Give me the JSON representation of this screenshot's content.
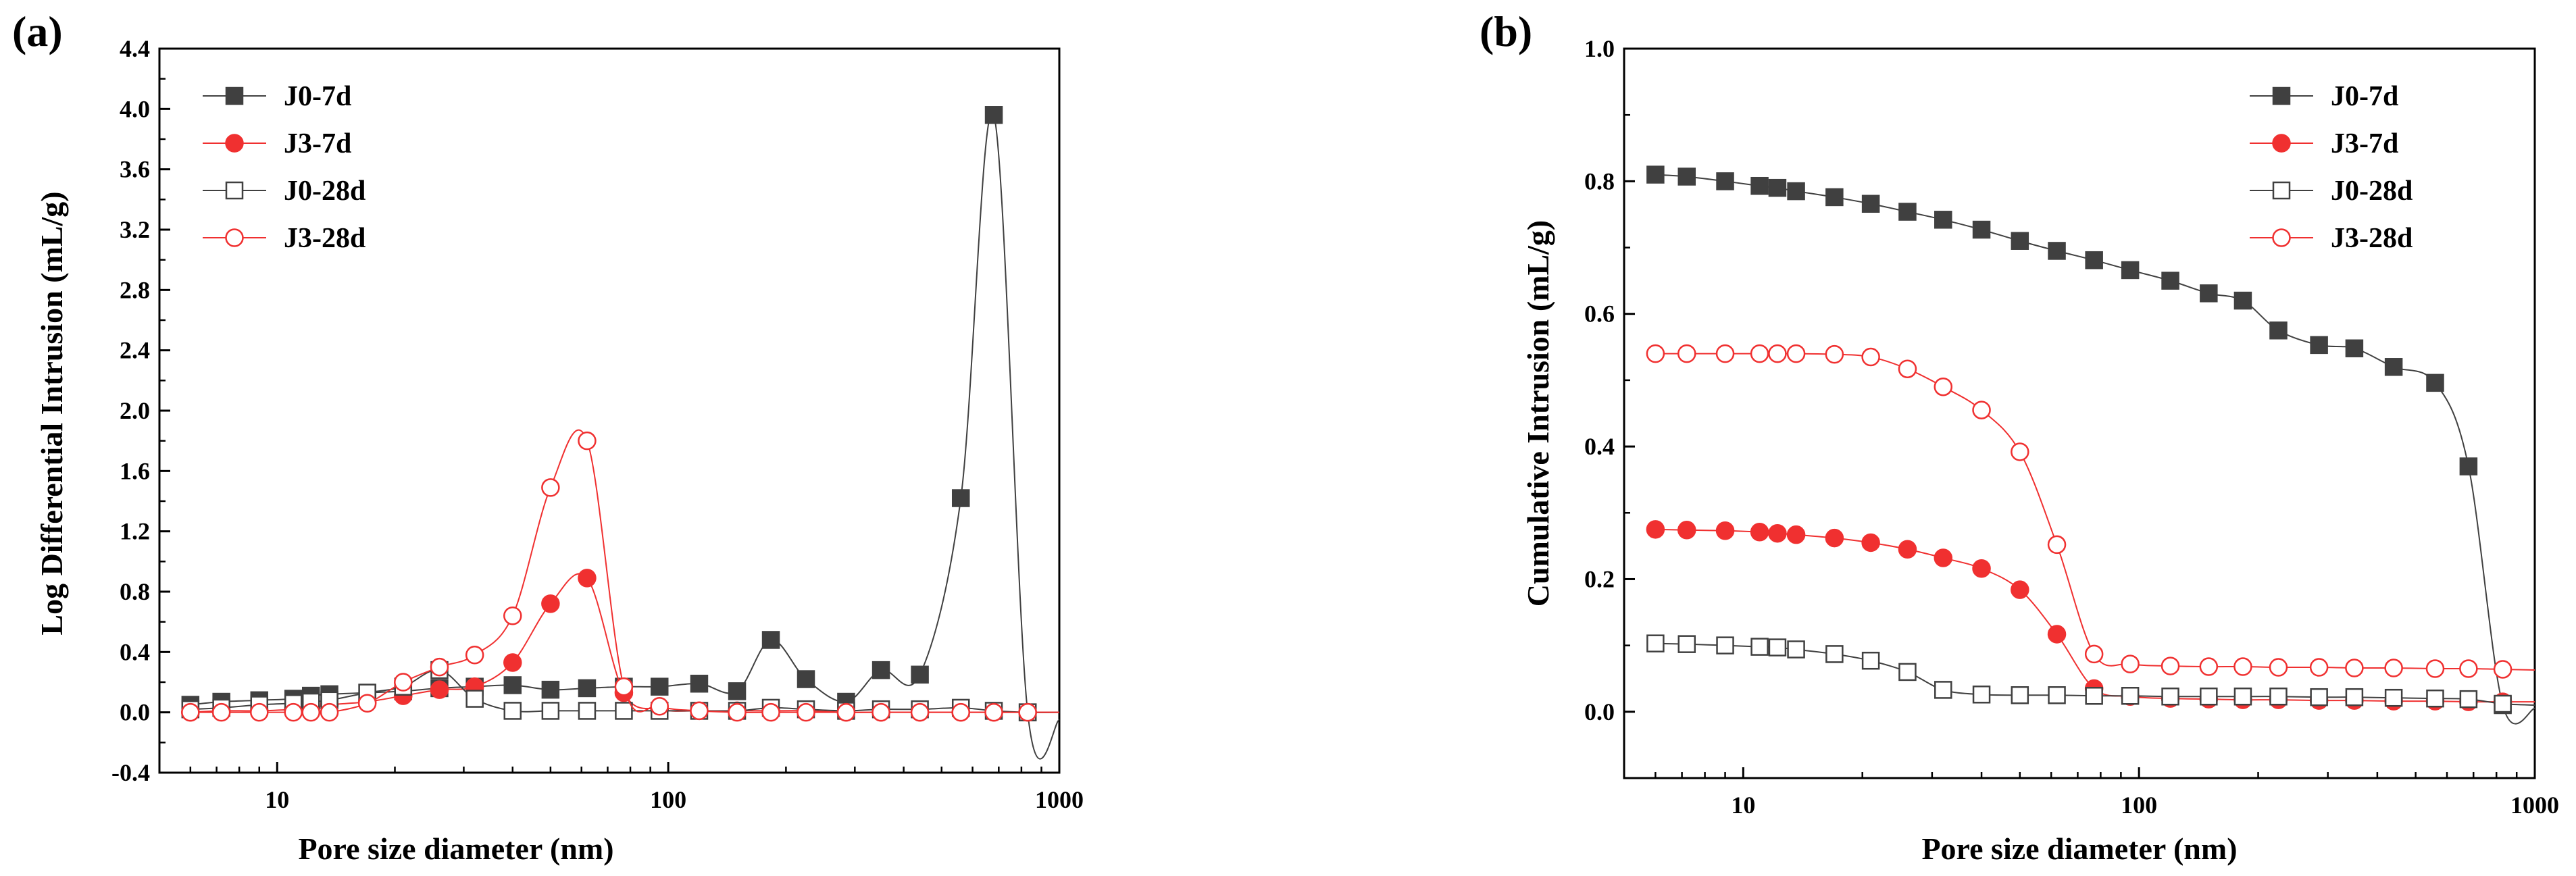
{
  "chart_data": [
    {
      "id": "a",
      "type": "line",
      "panel_label": "(a)",
      "xlabel": "Pore size diameter (nm)",
      "ylabel": "Log Differential Intrusion (mL/g)",
      "xscale": "log",
      "xlim": [
        5,
        1000
      ],
      "ylim": [
        -0.4,
        4.4
      ],
      "xticks": [
        10,
        100,
        1000
      ],
      "xtick_labels": [
        "10",
        "100",
        "1000"
      ],
      "yticks": [
        -0.4,
        0.0,
        0.4,
        0.8,
        1.2,
        1.6,
        2.0,
        2.4,
        2.8,
        3.2,
        3.6,
        4.0,
        4.4
      ],
      "ytick_labels": [
        "-0.4",
        "0.0",
        "0.4",
        "0.8",
        "1.2",
        "1.6",
        "2.0",
        "2.4",
        "2.8",
        "3.2",
        "3.6",
        "4.0",
        "4.4"
      ],
      "legend_position": "top-left",
      "series": [
        {
          "name": "J0-7d",
          "color": "#404040",
          "marker": "square",
          "filled": true,
          "x": [
            6,
            7.2,
            9,
            11,
            12.2,
            13.6,
            17,
            21,
            26,
            32,
            40,
            50,
            62,
            77,
            95,
            120,
            150,
            183,
            225,
            285,
            350,
            440,
            560,
            680,
            830,
            1000
          ],
          "y": [
            0.05,
            0.07,
            0.08,
            0.09,
            0.11,
            0.12,
            0.13,
            0.14,
            0.16,
            0.17,
            0.18,
            0.15,
            0.16,
            0.17,
            0.17,
            0.19,
            0.14,
            0.48,
            0.22,
            0.07,
            0.28,
            0.25,
            1.42,
            3.96,
            0.0,
            -0.05
          ]
        },
        {
          "name": "J3-7d",
          "color": "#f03030",
          "marker": "circle",
          "filled": true,
          "x": [
            6,
            7.2,
            9,
            11,
            12.2,
            13.6,
            17,
            21,
            26,
            32,
            40,
            50,
            62,
            77,
            95,
            120,
            150,
            183,
            225,
            285,
            350,
            440,
            560,
            680,
            830,
            1000
          ],
          "y": [
            0.0,
            0.01,
            0.01,
            0.02,
            0.03,
            0.05,
            0.07,
            0.11,
            0.15,
            0.17,
            0.33,
            0.72,
            0.89,
            0.13,
            0.02,
            0.01,
            0.01,
            0.01,
            0.01,
            0.0,
            0.0,
            0.0,
            0.0,
            0.0,
            0.0,
            0.0
          ]
        },
        {
          "name": "J0-28d",
          "color": "#404040",
          "marker": "square",
          "filled": false,
          "x": [
            6,
            7.2,
            9,
            11,
            12.2,
            13.6,
            17,
            21,
            26,
            32,
            40,
            50,
            62,
            77,
            95,
            120,
            150,
            183,
            225,
            285,
            350,
            440,
            560,
            680,
            830,
            1000
          ],
          "y": [
            0.02,
            0.03,
            0.05,
            0.06,
            0.07,
            0.08,
            0.13,
            0.17,
            0.28,
            0.09,
            0.01,
            0.01,
            0.01,
            0.01,
            0.01,
            0.01,
            0.01,
            0.03,
            0.02,
            0.01,
            0.02,
            0.02,
            0.03,
            0.01,
            0.0,
            0.0
          ]
        },
        {
          "name": "J3-28d",
          "color": "#f03030",
          "marker": "circle",
          "filled": false,
          "x": [
            6,
            7.2,
            9,
            11,
            12.2,
            13.6,
            17,
            21,
            26,
            32,
            40,
            50,
            62,
            77,
            95,
            120,
            150,
            183,
            225,
            285,
            350,
            440,
            560,
            680,
            830,
            1000
          ],
          "y": [
            0.0,
            0.0,
            0.0,
            0.0,
            0.0,
            0.0,
            0.06,
            0.2,
            0.3,
            0.38,
            0.64,
            1.49,
            1.8,
            0.17,
            0.04,
            0.01,
            0.0,
            0.0,
            0.0,
            0.0,
            0.0,
            0.0,
            0.0,
            0.0,
            0.0,
            0.0
          ]
        }
      ]
    },
    {
      "id": "b",
      "type": "line",
      "panel_label": "(b)",
      "xlabel": "Pore size diameter (nm)",
      "ylabel": "Cumulative Intrusion (mL/g)",
      "xscale": "log",
      "xlim": [
        5,
        1000
      ],
      "ylim": [
        -0.1,
        1.0
      ],
      "xticks": [
        10,
        100,
        1000
      ],
      "xtick_labels": [
        "10",
        "100",
        "1000"
      ],
      "yticks": [
        0.0,
        0.2,
        0.4,
        0.6,
        0.8,
        1.0
      ],
      "ytick_labels": [
        "0.0",
        "0.2",
        "0.4",
        "0.6",
        "0.8",
        "1.0"
      ],
      "legend_position": "top-right",
      "series": [
        {
          "name": "J0-7d",
          "color": "#404040",
          "marker": "square",
          "filled": true,
          "x": [
            6,
            7.2,
            9,
            11,
            12.2,
            13.6,
            17,
            21,
            26,
            32,
            40,
            50,
            62,
            77,
            95,
            120,
            150,
            183,
            225,
            285,
            350,
            440,
            560,
            680,
            830,
            1000
          ],
          "y": [
            0.81,
            0.807,
            0.8,
            0.793,
            0.79,
            0.785,
            0.776,
            0.766,
            0.754,
            0.742,
            0.727,
            0.71,
            0.695,
            0.681,
            0.666,
            0.65,
            0.631,
            0.62,
            0.575,
            0.553,
            0.548,
            0.52,
            0.496,
            0.37,
            0.01,
            0.005
          ]
        },
        {
          "name": "J3-7d",
          "color": "#f03030",
          "marker": "circle",
          "filled": true,
          "x": [
            6,
            7.2,
            9,
            11,
            12.2,
            13.6,
            17,
            21,
            26,
            32,
            40,
            50,
            62,
            77,
            95,
            120,
            150,
            183,
            225,
            285,
            350,
            440,
            560,
            680,
            830,
            1000
          ],
          "y": [
            0.275,
            0.274,
            0.273,
            0.271,
            0.269,
            0.267,
            0.262,
            0.255,
            0.245,
            0.232,
            0.216,
            0.184,
            0.117,
            0.035,
            0.023,
            0.02,
            0.019,
            0.018,
            0.018,
            0.017,
            0.017,
            0.016,
            0.016,
            0.015,
            0.015,
            0.015
          ]
        },
        {
          "name": "J0-28d",
          "color": "#404040",
          "marker": "square",
          "filled": false,
          "x": [
            6,
            7.2,
            9,
            11,
            12.2,
            13.6,
            17,
            21,
            26,
            32,
            40,
            50,
            62,
            77,
            95,
            120,
            150,
            183,
            225,
            285,
            350,
            440,
            560,
            680,
            830,
            1000
          ],
          "y": [
            0.103,
            0.102,
            0.1,
            0.098,
            0.097,
            0.094,
            0.087,
            0.077,
            0.06,
            0.033,
            0.026,
            0.025,
            0.025,
            0.024,
            0.024,
            0.023,
            0.023,
            0.023,
            0.023,
            0.022,
            0.022,
            0.021,
            0.02,
            0.019,
            0.012,
            0.01
          ]
        },
        {
          "name": "J3-28d",
          "color": "#f03030",
          "marker": "circle",
          "filled": false,
          "x": [
            6,
            7.2,
            9,
            11,
            12.2,
            13.6,
            17,
            21,
            26,
            32,
            40,
            50,
            62,
            77,
            95,
            120,
            150,
            183,
            225,
            285,
            350,
            440,
            560,
            680,
            830,
            1000
          ],
          "y": [
            0.54,
            0.54,
            0.54,
            0.54,
            0.54,
            0.54,
            0.539,
            0.535,
            0.517,
            0.49,
            0.455,
            0.392,
            0.252,
            0.087,
            0.072,
            0.069,
            0.068,
            0.068,
            0.067,
            0.067,
            0.066,
            0.066,
            0.065,
            0.065,
            0.064,
            0.063
          ]
        }
      ]
    }
  ]
}
